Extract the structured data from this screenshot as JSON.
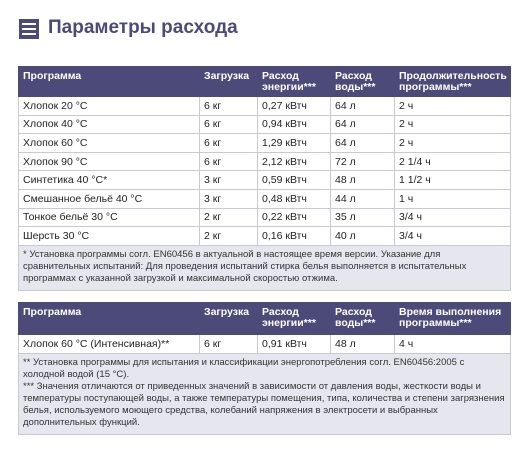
{
  "header": {
    "title": "Параметры расхода"
  },
  "table1": {
    "columns": [
      [
        "Программа"
      ],
      [
        "Загрузка"
      ],
      [
        "Расход",
        "энергии***"
      ],
      [
        "Расход",
        "воды***"
      ],
      [
        "Продолжительность",
        "программы***"
      ]
    ],
    "rows": [
      [
        "Хлопок 20 °C",
        "6 кг",
        "0,27 кВтч",
        "64 л",
        "2 ч"
      ],
      [
        "Хлопок 40 °C",
        "6 кг",
        "0,94 кВтч",
        "64 л",
        "2 ч"
      ],
      [
        "Хлопок 60 °C",
        "6 кг",
        "1,29 кВтч",
        "64 л",
        "2 ч"
      ],
      [
        "Хлопок 90 °C",
        "6 кг",
        "2,12 кВтч",
        "72 л",
        "2 1/4 ч"
      ],
      [
        "Синтетика 40 °C*",
        "3 кг",
        "0,59 кВтч",
        "48 л",
        "1 1/2 ч"
      ],
      [
        "Смешанное бельё 40 °C",
        "3 кг",
        "0,48 кВтч",
        "44 л",
        "1 ч"
      ],
      [
        "Тонкое бельё 30 °C",
        "2 кг",
        "0,22 кВтч",
        "35 л",
        "3/4 ч"
      ],
      [
        "Шерсть 30 °C",
        "2 кг",
        "0,16 кВтч",
        "40 л",
        "3/4 ч"
      ]
    ],
    "footnotes": [
      "* Установка программы согл. EN60456 в актуальной в настоящее время версии. Указание для сравнительных испытаний: Для проведения испытаний стирка белья выполняется в испытательных программах с указанной загрузкой и максимальной скоростью отжима."
    ]
  },
  "table2": {
    "columns": [
      [
        "Программа"
      ],
      [
        "Загрузка"
      ],
      [
        "Расход",
        "энергии***"
      ],
      [
        "Расход",
        "воды***"
      ],
      [
        "Время выполнения",
        "программы***"
      ]
    ],
    "rows": [
      [
        "Хлопок 60 °C (Интенсивная)**",
        "6 кг",
        "0,91 кВтч",
        "48 л",
        "4 ч"
      ]
    ],
    "footnotes": [
      "** Установка программы для испытания и классификации энергопотребления согл. EN60456:2005 с холодной водой (15 °C).",
      "*** Значения отличаются от приведенных значений в зависимости от давления воды, жесткости воды и температуры поступающей воды, а также температуры помещения, типа, количества и степени загрязнения белья, используемого моющего средства, колебаний напряжения в электросети и выбранных дополнительных функций."
    ]
  }
}
